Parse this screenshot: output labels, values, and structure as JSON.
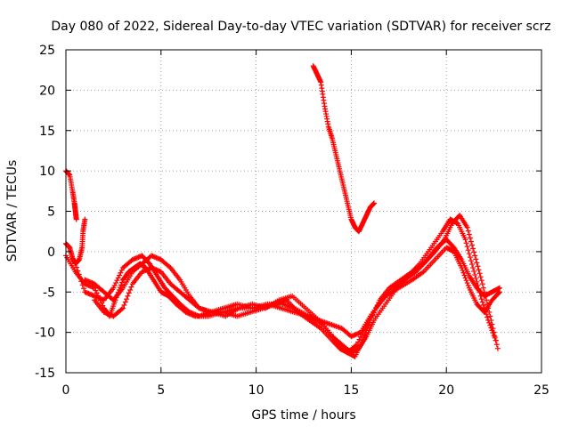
{
  "chart_data": {
    "type": "scatter",
    "title": "Day 080 of 2022, Sidereal Day-to-day VTEC variation (SDTVAR) for receiver scrz",
    "xlabel": "GPS time / hours",
    "ylabel": "SDTVAR / TECUs",
    "xlim": [
      0,
      25
    ],
    "ylim": [
      -15,
      25
    ],
    "xticks": [
      0,
      5,
      10,
      15,
      20,
      25
    ],
    "yticks": [
      -15,
      -10,
      -5,
      0,
      5,
      10,
      15,
      20,
      25
    ],
    "xtick_labels": [
      "0",
      "5",
      "10",
      "15",
      "20",
      "25"
    ],
    "ytick_labels": [
      "-15",
      "-10",
      "-5",
      "0",
      "5",
      "10",
      "15",
      "20",
      "25"
    ],
    "grid": true,
    "marker": "+",
    "color": "#ff0000",
    "series": [
      {
        "name": "trace-1",
        "x": [
          0.0,
          0.2,
          0.35,
          0.45,
          0.5,
          0.55
        ],
        "y": [
          10.0,
          9.5,
          7.5,
          6.0,
          5.0,
          4.0
        ]
      },
      {
        "name": "trace-2",
        "x": [
          0.0,
          0.2,
          0.35,
          0.5,
          0.7,
          0.85,
          0.9,
          1.0
        ],
        "y": [
          1.0,
          0.5,
          -0.8,
          -1.5,
          -1.0,
          0.5,
          2.5,
          4.0
        ]
      },
      {
        "name": "trace-3",
        "x": [
          0.0,
          0.5,
          1.0,
          1.5,
          2.0,
          2.3,
          2.6,
          3.0,
          3.3,
          3.6,
          3.9,
          4.2,
          4.6,
          5.0,
          5.4,
          5.8,
          6.3,
          6.8,
          7.5,
          8.2,
          9.0,
          9.8,
          10.6,
          11.4,
          12.0,
          12.8,
          13.5,
          14.2,
          14.8,
          15.3,
          15.8,
          16.3,
          16.8,
          17.5,
          18.2,
          18.8,
          19.4,
          20.0,
          20.4,
          20.8,
          21.2,
          21.6,
          22.0,
          22.4,
          22.8
        ],
        "y": [
          -0.5,
          -2.5,
          -4.0,
          -4.5,
          -7.0,
          -8.0,
          -6.0,
          -3.5,
          -2.5,
          -2.0,
          -1.5,
          -2.0,
          -3.5,
          -5.0,
          -5.5,
          -6.5,
          -7.5,
          -8.0,
          -8.0,
          -7.5,
          -7.0,
          -7.0,
          -6.5,
          -6.5,
          -7.0,
          -8.0,
          -9.0,
          -11.0,
          -12.5,
          -11.5,
          -9.0,
          -7.0,
          -5.5,
          -4.5,
          -3.5,
          -2.5,
          -1.0,
          0.5,
          0.0,
          -2.0,
          -4.5,
          -6.5,
          -7.5,
          -6.0,
          -5.0
        ]
      },
      {
        "name": "trace-4",
        "x": [
          0.5,
          1.0,
          1.5,
          2.0,
          2.5,
          3.0,
          3.5,
          4.0,
          4.4,
          4.8,
          5.2,
          5.6,
          6.0,
          6.5,
          7.0,
          7.6,
          8.3,
          9.0,
          9.8,
          10.6,
          11.3,
          12.0,
          12.7,
          13.3,
          13.9,
          14.5,
          15.0,
          15.5,
          16.0,
          16.6,
          17.2,
          17.8,
          18.4,
          19.0,
          19.5,
          20.0,
          20.4,
          20.8,
          21.2,
          21.6,
          22.0,
          22.4,
          22.8
        ],
        "y": [
          -1.5,
          -5.0,
          -5.5,
          -6.0,
          -4.5,
          -2.0,
          -1.0,
          -0.5,
          -1.5,
          -3.0,
          -4.5,
          -5.5,
          -6.5,
          -7.5,
          -8.0,
          -7.5,
          -7.0,
          -6.5,
          -7.0,
          -6.5,
          -7.0,
          -7.5,
          -8.0,
          -8.5,
          -9.0,
          -9.5,
          -10.5,
          -10.0,
          -8.0,
          -6.0,
          -4.5,
          -3.5,
          -2.5,
          -1.0,
          0.5,
          1.5,
          0.5,
          -1.0,
          -3.0,
          -4.5,
          -5.5,
          -5.0,
          -4.5
        ]
      },
      {
        "name": "trace-5",
        "x": [
          1.0,
          1.5,
          2.0,
          2.5,
          3.0,
          3.5,
          4.0,
          4.5,
          5.0,
          5.5,
          6.0,
          6.5,
          7.0,
          7.7,
          8.4,
          9.1,
          9.8,
          10.5,
          11.2,
          11.9,
          12.6,
          13.3,
          14.0,
          14.5,
          15.0,
          15.4,
          15.8,
          16.2,
          16.8,
          17.4,
          18.0,
          18.6,
          19.2,
          19.8,
          20.2,
          20.6,
          21.0,
          21.4,
          21.8,
          22.2,
          22.6
        ],
        "y": [
          -3.5,
          -4.0,
          -5.0,
          -6.0,
          -4.5,
          -2.5,
          -1.5,
          -0.5,
          -1.0,
          -2.0,
          -3.5,
          -5.5,
          -7.0,
          -7.5,
          -8.0,
          -7.0,
          -6.5,
          -7.0,
          -6.0,
          -5.5,
          -7.0,
          -8.5,
          -10.5,
          -11.5,
          -12.5,
          -12.0,
          -10.5,
          -8.5,
          -6.5,
          -4.5,
          -3.0,
          -1.5,
          0.5,
          2.5,
          4.0,
          3.5,
          1.5,
          -2.0,
          -5.5,
          -8.5,
          -11.0
        ]
      },
      {
        "name": "trace-6",
        "x": [
          1.5,
          2.0,
          2.5,
          3.0,
          3.5,
          4.0,
          4.5,
          5.0,
          5.5,
          6.0,
          6.5,
          7.0,
          7.6,
          8.3,
          9.0,
          9.7,
          10.4,
          11.0,
          11.6,
          12.2,
          12.8,
          13.4,
          14.0,
          14.4,
          14.8,
          15.2,
          15.6,
          16.0,
          16.5,
          17.0,
          17.6,
          18.2,
          18.8,
          19.4,
          19.9,
          20.3,
          20.7,
          21.1,
          21.5,
          21.9,
          22.3,
          22.7
        ],
        "y": [
          -6.0,
          -7.5,
          -8.0,
          -7.0,
          -4.0,
          -2.5,
          -2.0,
          -2.5,
          -4.0,
          -5.0,
          -6.0,
          -7.0,
          -7.5,
          -7.5,
          -8.0,
          -7.5,
          -7.0,
          -6.5,
          -6.0,
          -7.5,
          -8.5,
          -9.5,
          -11.0,
          -12.0,
          -12.5,
          -13.0,
          -11.0,
          -8.5,
          -6.0,
          -4.5,
          -3.5,
          -2.5,
          -1.5,
          0.0,
          1.5,
          3.5,
          4.5,
          3.0,
          -0.5,
          -4.0,
          -8.0,
          -12.0
        ]
      },
      {
        "name": "trace-7",
        "x": [
          13.0,
          13.2,
          13.4,
          13.6,
          13.8,
          14.0,
          14.2,
          14.4,
          14.6,
          14.8,
          15.0,
          15.2,
          15.4,
          15.6,
          15.8,
          16.0,
          16.2
        ],
        "y": [
          23.0,
          22.0,
          21.0,
          18.0,
          15.5,
          14.0,
          12.0,
          10.0,
          8.0,
          6.0,
          4.0,
          3.0,
          2.5,
          3.5,
          4.5,
          5.5,
          6.0
        ]
      }
    ]
  }
}
